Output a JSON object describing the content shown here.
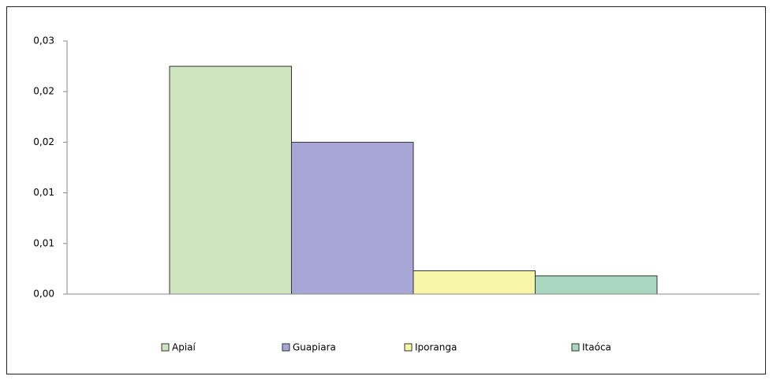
{
  "chart_data": {
    "type": "bar",
    "categories": [
      null
    ],
    "series": [
      {
        "name": "Apiaí",
        "color": "#cfe5c0",
        "values": [
          0.0225
        ]
      },
      {
        "name": "Guapiara",
        "color": "#a7a6d6",
        "values": [
          0.015
        ]
      },
      {
        "name": "Iporanga",
        "color": "#f8f6a8",
        "values": [
          0.0023
        ]
      },
      {
        "name": "Itaóca",
        "color": "#a9d6c0",
        "values": [
          0.0018
        ]
      }
    ],
    "ylim": [
      0,
      0.025
    ],
    "yticks": [
      {
        "value": 0,
        "label": "0,00"
      },
      {
        "value": 0.005,
        "label": "0,01"
      },
      {
        "value": 0.01,
        "label": "0,01"
      },
      {
        "value": 0.015,
        "label": "0,02"
      },
      {
        "value": 0.02,
        "label": "0,02"
      },
      {
        "value": 0.025,
        "label": "0,03"
      }
    ],
    "grid": false,
    "legend": "bottom"
  }
}
